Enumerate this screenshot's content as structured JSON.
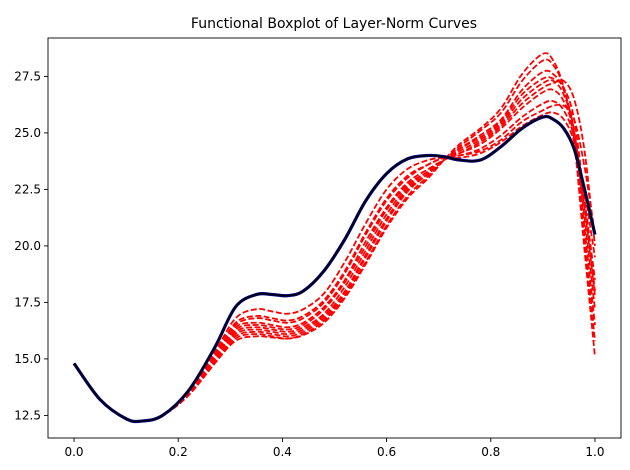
{
  "chart_data": {
    "type": "line",
    "title": "Functional Boxplot of Layer-Norm Curves",
    "xlabel": "",
    "ylabel": "",
    "xlim": [
      -0.05,
      1.05
    ],
    "ylim": [
      11.5,
      29.2
    ],
    "xticks": [
      0.0,
      0.2,
      0.4,
      0.6,
      0.8,
      1.0
    ],
    "xtick_labels": [
      "0.0",
      "0.2",
      "0.4",
      "0.6",
      "0.8",
      "1.0"
    ],
    "yticks": [
      12.5,
      15.0,
      17.5,
      20.0,
      22.5,
      25.0,
      27.5
    ],
    "ytick_labels": [
      "12.5",
      "15.0",
      "17.5",
      "20.0",
      "22.5",
      "25.0",
      "27.5"
    ],
    "grid": false,
    "legend": "none",
    "colors": {
      "outlier": "#ff0000",
      "median": "#000000",
      "band": "#00007a"
    },
    "x": [
      0.0,
      0.05,
      0.1,
      0.13,
      0.17,
      0.22,
      0.27,
      0.31,
      0.35,
      0.38,
      0.41,
      0.44,
      0.48,
      0.52,
      0.56,
      0.6,
      0.64,
      0.68,
      0.71,
      0.74,
      0.78,
      0.82,
      0.86,
      0.9,
      0.92,
      0.94,
      0.96,
      0.98,
      1.0
    ],
    "series": [
      {
        "role": "central",
        "style": "solid",
        "values": [
          14.8,
          13.2,
          12.35,
          12.25,
          12.5,
          13.6,
          15.5,
          17.3,
          17.85,
          17.85,
          17.8,
          18.0,
          18.9,
          20.3,
          22.0,
          23.2,
          23.85,
          24.0,
          23.95,
          23.8,
          23.8,
          24.4,
          25.2,
          25.7,
          25.6,
          25.2,
          24.3,
          22.5,
          20.5
        ]
      },
      {
        "role": "outlier",
        "style": "dashed",
        "values": [
          14.8,
          13.2,
          12.35,
          12.25,
          12.5,
          13.6,
          15.3,
          16.8,
          17.2,
          17.1,
          17.0,
          17.2,
          17.9,
          19.3,
          21.0,
          22.5,
          23.4,
          23.8,
          23.9,
          23.9,
          24.1,
          24.6,
          25.3,
          25.8,
          25.9,
          25.6,
          24.6,
          22.4,
          19.5
        ]
      },
      {
        "role": "outlier",
        "style": "dashed",
        "values": [
          14.8,
          13.2,
          12.35,
          12.25,
          12.5,
          13.6,
          15.2,
          16.6,
          16.9,
          16.8,
          16.7,
          16.9,
          17.6,
          18.9,
          20.6,
          22.1,
          23.1,
          23.6,
          23.9,
          24.0,
          24.3,
          24.9,
          25.7,
          26.3,
          26.4,
          26.0,
          24.8,
          22.0,
          18.5
        ]
      },
      {
        "role": "outlier",
        "style": "dashed",
        "values": [
          14.8,
          13.2,
          12.35,
          12.25,
          12.5,
          13.5,
          15.1,
          16.4,
          16.6,
          16.5,
          16.4,
          16.6,
          17.3,
          18.5,
          20.2,
          21.7,
          22.8,
          23.4,
          23.8,
          24.1,
          24.5,
          25.2,
          26.1,
          26.8,
          26.9,
          26.4,
          25.0,
          21.7,
          17.8
        ]
      },
      {
        "role": "outlier",
        "style": "dashed",
        "values": [
          14.8,
          13.2,
          12.35,
          12.25,
          12.5,
          13.5,
          15.0,
          16.2,
          16.4,
          16.3,
          16.2,
          16.4,
          17.0,
          18.2,
          19.8,
          21.4,
          22.6,
          23.3,
          23.8,
          24.2,
          24.7,
          25.4,
          26.5,
          27.2,
          27.3,
          26.7,
          25.1,
          21.3,
          17.2
        ]
      },
      {
        "role": "outlier",
        "style": "dashed",
        "values": [
          14.8,
          13.2,
          12.35,
          12.25,
          12.5,
          13.4,
          14.9,
          16.0,
          16.2,
          16.1,
          16.0,
          16.2,
          16.8,
          17.9,
          19.5,
          21.1,
          22.4,
          23.2,
          23.8,
          24.3,
          24.9,
          25.6,
          26.9,
          27.7,
          27.6,
          26.9,
          25.0,
          20.8,
          16.5
        ]
      },
      {
        "role": "outlier",
        "style": "dashed",
        "values": [
          14.8,
          13.2,
          12.35,
          12.25,
          12.5,
          13.4,
          14.8,
          15.9,
          16.1,
          16.0,
          15.9,
          16.1,
          16.7,
          17.8,
          19.3,
          20.9,
          22.2,
          23.1,
          23.8,
          24.4,
          25.1,
          25.9,
          27.3,
          28.2,
          28.0,
          27.0,
          24.8,
          20.3,
          15.8
        ]
      },
      {
        "role": "outlier",
        "style": "dashed",
        "values": [
          14.8,
          13.2,
          12.35,
          12.25,
          12.5,
          13.4,
          14.8,
          15.8,
          16.0,
          15.95,
          15.9,
          16.05,
          16.6,
          17.7,
          19.2,
          20.8,
          22.1,
          23.0,
          23.8,
          24.5,
          25.2,
          26.1,
          27.6,
          28.5,
          28.2,
          27.0,
          24.6,
          19.8,
          15.1
        ]
      },
      {
        "role": "outlier",
        "style": "dashed",
        "values": [
          14.8,
          13.2,
          12.35,
          12.25,
          12.5,
          13.5,
          15.1,
          16.5,
          16.8,
          16.7,
          16.6,
          16.8,
          17.5,
          18.8,
          20.5,
          22.0,
          23.0,
          23.6,
          23.9,
          24.0,
          24.2,
          24.7,
          25.5,
          26.0,
          26.2,
          26.2,
          25.6,
          23.5,
          20.5
        ]
      },
      {
        "role": "outlier",
        "style": "dashed",
        "values": [
          14.8,
          13.2,
          12.35,
          12.25,
          12.5,
          13.5,
          15.0,
          16.3,
          16.5,
          16.4,
          16.3,
          16.5,
          17.2,
          18.4,
          20.0,
          21.6,
          22.7,
          23.3,
          23.8,
          24.1,
          24.6,
          25.3,
          26.3,
          27.0,
          27.2,
          27.3,
          26.5,
          24.2,
          20.0
        ]
      },
      {
        "role": "outlier",
        "style": "dashed",
        "values": [
          14.8,
          13.2,
          12.35,
          12.25,
          12.5,
          13.4,
          14.9,
          16.1,
          16.3,
          16.2,
          16.1,
          16.3,
          16.9,
          18.0,
          19.6,
          21.2,
          22.5,
          23.2,
          23.8,
          24.3,
          24.8,
          25.5,
          26.7,
          27.4,
          27.4,
          27.0,
          25.6,
          22.0,
          18.0
        ]
      }
    ]
  }
}
